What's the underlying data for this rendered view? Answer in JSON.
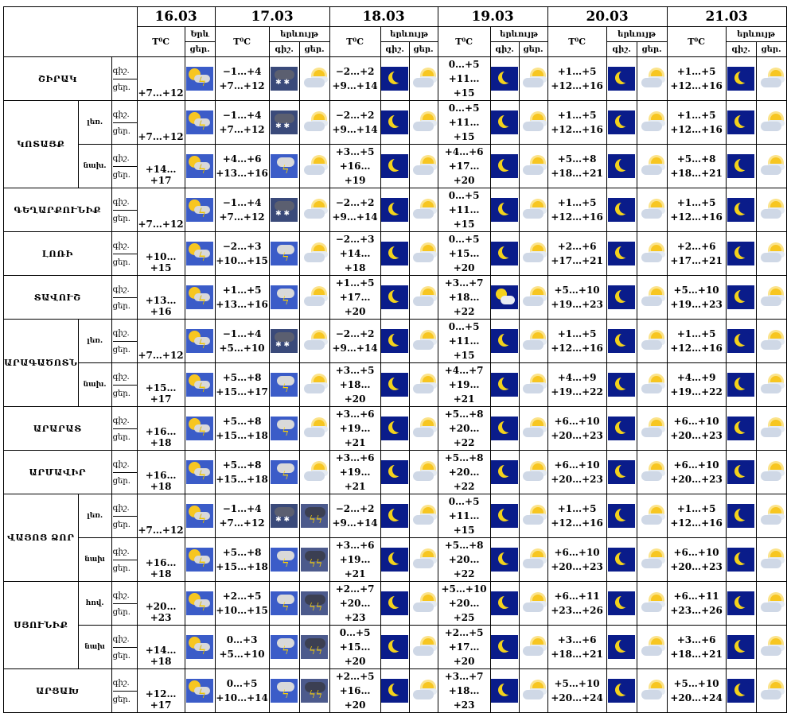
{
  "header": {
    "dates": [
      "16.03",
      "17.03",
      "18.03",
      "19.03",
      "20.03",
      "21.03"
    ],
    "temp_label": "T⁰C",
    "weather_label": "երևույթ",
    "weather_label_short": "Երև",
    "day_label": "ցեր.",
    "night_label": "գիշ."
  },
  "rows": [
    {
      "region": "ՇԻՐԱԿ",
      "sub": "",
      "t16": "+7…+12",
      "i16": "sunstorm",
      "d": [
        [
          "−1…+4",
          "+7…+12",
          "snow",
          "sunc"
        ],
        [
          "−2…+2",
          "+9…+14",
          "moon",
          "sunc"
        ],
        [
          "0…+5",
          "+11…+15",
          "moon",
          "sunc"
        ],
        [
          "+1…+5",
          "+12…+16",
          "moon",
          "sunc"
        ],
        [
          "+1…+5",
          "+12…+16",
          "moon",
          "sunc"
        ]
      ]
    },
    {
      "region": "ԿՈՏԱՅՔ",
      "sub": "լեռ.",
      "t16": "+7…+12",
      "i16": "sunstorm",
      "d": [
        [
          "−1…+4",
          "+7…+12",
          "snow",
          "sunc"
        ],
        [
          "−2…+2",
          "+9…+14",
          "moon",
          "sunc"
        ],
        [
          "0…+5",
          "+11…+15",
          "moon",
          "sunc"
        ],
        [
          "+1…+5",
          "+12…+16",
          "moon",
          "sunc"
        ],
        [
          "+1…+5",
          "+12…+16",
          "moon",
          "sunc"
        ]
      ]
    },
    {
      "region": "",
      "sub": "նախ.",
      "t16": "+14…+17",
      "i16": "sunstorm",
      "d": [
        [
          "+4…+6",
          "+13…+16",
          "storm",
          "sunc"
        ],
        [
          "+3…+5",
          "+16…+19",
          "moon",
          "sunc"
        ],
        [
          "+4…+6",
          "+17…+20",
          "moon",
          "sunc"
        ],
        [
          "+5…+8",
          "+18…+21",
          "moon",
          "sunc"
        ],
        [
          "+5…+8",
          "+18…+21",
          "moon",
          "sunc"
        ]
      ]
    },
    {
      "region": "ԳԵՂԱՐՔՈՒՆԻՔ",
      "sub": "",
      "t16": "+7…+12",
      "i16": "sunstorm",
      "d": [
        [
          "−1…+4",
          "+7…+12",
          "snow",
          "sunc"
        ],
        [
          "−2…+2",
          "+9…+14",
          "moon",
          "sunc"
        ],
        [
          "0…+5",
          "+11…+15",
          "moon",
          "sunc"
        ],
        [
          "+1…+5",
          "+12…+16",
          "moon",
          "sunc"
        ],
        [
          "+1…+5",
          "+12…+16",
          "moon",
          "sunc"
        ]
      ]
    },
    {
      "region": "ԼՈՌԻ",
      "sub": "",
      "t16": "+10…+15",
      "i16": "sunstorm",
      "d": [
        [
          "−2…+3",
          "+10…+15",
          "storm",
          "sunc"
        ],
        [
          "−2…+3",
          "+14…+18",
          "moon",
          "sunc"
        ],
        [
          "0…+5",
          "+15…+20",
          "moon",
          "sunc"
        ],
        [
          "+2…+6",
          "+17…+21",
          "moon",
          "sunc"
        ],
        [
          "+2…+6",
          "+17…+21",
          "moon",
          "sunc"
        ]
      ]
    },
    {
      "region": "ՏԱՎՈՒՇ",
      "sub": "",
      "t16": "+13…+16",
      "i16": "sunstorm",
      "d": [
        [
          "+1…+5",
          "+13…+16",
          "storm",
          "sunc"
        ],
        [
          "+1…+5",
          "+17…+20",
          "moon",
          "sunc"
        ],
        [
          "+3…+7",
          "+18…+22",
          "moonc",
          "sunc"
        ],
        [
          "+5…+10",
          "+19…+23",
          "moon",
          "sunc"
        ],
        [
          "+5…+10",
          "+19…+23",
          "moon",
          "sunc"
        ]
      ]
    },
    {
      "region": "ԱՐԱԳԱԾՈՏՆ",
      "sub": "լեռ.",
      "t16": "+7…+12",
      "i16": "sunstorm",
      "d": [
        [
          "−1…+4",
          "+5…+10",
          "snow",
          "sunc"
        ],
        [
          "−2…+2",
          "+9…+14",
          "moon",
          "sunc"
        ],
        [
          "0…+5",
          "+11…+15",
          "moon",
          "sunc"
        ],
        [
          "+1…+5",
          "+12…+16",
          "moon",
          "sunc"
        ],
        [
          "+1…+5",
          "+12…+16",
          "moon",
          "sunc"
        ]
      ]
    },
    {
      "region": "",
      "sub": "նախ.",
      "t16": "+15…+17",
      "i16": "sunstorm",
      "d": [
        [
          "+5…+8",
          "+15…+17",
          "storm",
          "sunc"
        ],
        [
          "+3…+5",
          "+18…+20",
          "moon",
          "sunc"
        ],
        [
          "+4…+7",
          "+19…+21",
          "moon",
          "sunc"
        ],
        [
          "+4…+9",
          "+19…+22",
          "moon",
          "sunc"
        ],
        [
          "+4…+9",
          "+19…+22",
          "moon",
          "sunc"
        ]
      ]
    },
    {
      "region": "ԱՐԱՐԱՏ",
      "sub": "",
      "t16": "+16…+18",
      "i16": "sunstorm",
      "d": [
        [
          "+5…+8",
          "+15…+18",
          "storm",
          "sunc"
        ],
        [
          "+3…+6",
          "+19…+21",
          "moon",
          "sunc"
        ],
        [
          "+5…+8",
          "+20…+22",
          "moon",
          "sunc"
        ],
        [
          "+6…+10",
          "+20…+23",
          "moon",
          "sunc"
        ],
        [
          "+6…+10",
          "+20…+23",
          "moon",
          "sunc"
        ]
      ]
    },
    {
      "region": "ԱՐՄԱՎԻՐ",
      "sub": "",
      "t16": "+16…+18",
      "i16": "sunstorm",
      "d": [
        [
          "+5…+8",
          "+15…+18",
          "storm",
          "sunc"
        ],
        [
          "+3…+6",
          "+19…+21",
          "moon",
          "sunc"
        ],
        [
          "+5…+8",
          "+20…+22",
          "moon",
          "sunc"
        ],
        [
          "+6…+10",
          "+20…+23",
          "moon",
          "sunc"
        ],
        [
          "+6…+10",
          "+20…+23",
          "moon",
          "sunc"
        ]
      ]
    },
    {
      "region": "ՎԱՅՈՑ ՁՈՐ",
      "sub": "լեռ.",
      "t16": "+7…+12",
      "i16": "sunstorm",
      "d": [
        [
          "−1…+4",
          "+7…+12",
          "snow",
          "dstorm"
        ],
        [
          "−2…+2",
          "+9…+14",
          "moon",
          "sunc"
        ],
        [
          "0…+5",
          "+11…+15",
          "moon",
          "sunc"
        ],
        [
          "+1…+5",
          "+12…+16",
          "moon",
          "sunc"
        ],
        [
          "+1…+5",
          "+12…+16",
          "moon",
          "sunc"
        ]
      ]
    },
    {
      "region": "",
      "sub": "նախ",
      "t16": "+16…+18",
      "i16": "sunstorm",
      "d": [
        [
          "+5…+8",
          "+15…+18",
          "storm",
          "dstorm"
        ],
        [
          "+3…+6",
          "+19…+21",
          "moon",
          "sunc"
        ],
        [
          "+5…+8",
          "+20…+22",
          "moon",
          "sunc"
        ],
        [
          "+6…+10",
          "+20…+23",
          "moon",
          "sunc"
        ],
        [
          "+6…+10",
          "+20…+23",
          "moon",
          "sunc"
        ]
      ]
    },
    {
      "region": "ՍՅՈՒՆԻՔ",
      "sub": "հով.",
      "t16": "+20…+23",
      "i16": "sunstorm",
      "d": [
        [
          "+2…+5",
          "+10…+15",
          "storm",
          "dstorm"
        ],
        [
          "+2…+7",
          "+20…+23",
          "moon",
          "sunc"
        ],
        [
          "+5…+10",
          "+20…+25",
          "moon",
          "sunc"
        ],
        [
          "+6…+11",
          "+23…+26",
          "moon",
          "sunc"
        ],
        [
          "+6…+11",
          "+23…+26",
          "moon",
          "sunc"
        ]
      ]
    },
    {
      "region": "",
      "sub": "նախ",
      "t16": "+14…+18",
      "i16": "sunstorm",
      "d": [
        [
          "0…+3",
          "+5…+10",
          "storm",
          "dstorm"
        ],
        [
          "0…+5",
          "+15…+20",
          "moon",
          "sunc"
        ],
        [
          "+2…+5",
          "+17…+20",
          "moon",
          "sunc"
        ],
        [
          "+3…+6",
          "+18…+21",
          "moon",
          "sunc"
        ],
        [
          "+3…+6",
          "+18…+21",
          "moon",
          "sunc"
        ]
      ]
    },
    {
      "region": "ԱՐՑԱԽ",
      "sub": "",
      "t16": "+12…+17",
      "i16": "sunstorm",
      "d": [
        [
          "0…+5",
          "+10…+14",
          "storm",
          "dstorm"
        ],
        [
          "+2…+5",
          "+16…+20",
          "moon",
          "sunc"
        ],
        [
          "+3…+7",
          "+18…+23",
          "moon",
          "sunc"
        ],
        [
          "+5…+10",
          "+20…+24",
          "moon",
          "sunc"
        ],
        [
          "+5…+10",
          "+20…+24",
          "moon",
          "sunc"
        ]
      ]
    }
  ]
}
